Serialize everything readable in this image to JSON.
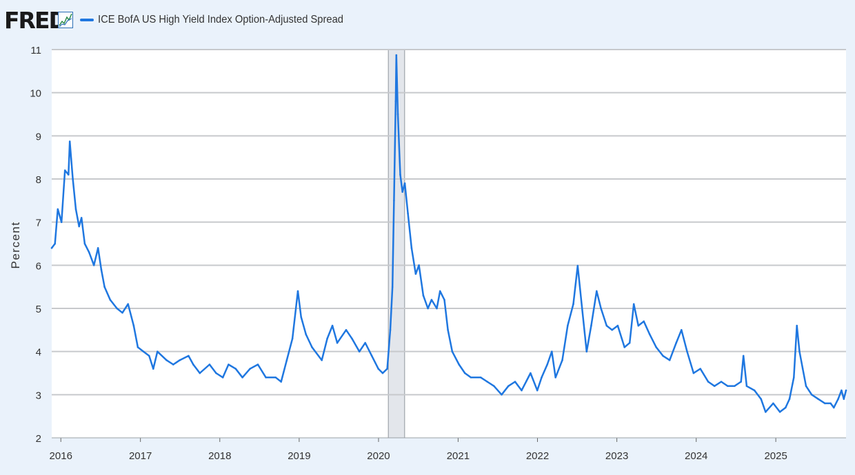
{
  "header": {
    "logo_text": "FRED",
    "logo_icon": "line-chart-icon"
  },
  "chart_data": {
    "type": "line",
    "ylabel": "Percent",
    "ylim": [
      2,
      11
    ],
    "y_ticks": [
      2,
      3,
      4,
      5,
      6,
      7,
      8,
      9,
      10,
      11
    ],
    "x_range": [
      "2015-11-20",
      "2025-11-20"
    ],
    "x_ticks": [
      "2016",
      "2017",
      "2018",
      "2019",
      "2020",
      "2021",
      "2022",
      "2023",
      "2024",
      "2025"
    ],
    "grid": true,
    "legend": "top-left",
    "recessions": [
      {
        "start": "2020-02-15",
        "end": "2020-04-30"
      }
    ],
    "series": [
      {
        "name": "ICE BofA US High Yield Index Option-Adjusted Spread",
        "color": "#1f77e0",
        "points": [
          [
            "2015-11-20",
            6.4
          ],
          [
            "2015-12-05",
            6.5
          ],
          [
            "2015-12-18",
            7.3
          ],
          [
            "2016-01-04",
            7.0
          ],
          [
            "2016-01-20",
            8.2
          ],
          [
            "2016-02-05",
            8.1
          ],
          [
            "2016-02-11",
            8.87
          ],
          [
            "2016-02-25",
            8.0
          ],
          [
            "2016-03-10",
            7.3
          ],
          [
            "2016-03-25",
            6.9
          ],
          [
            "2016-04-05",
            7.1
          ],
          [
            "2016-04-20",
            6.5
          ],
          [
            "2016-05-10",
            6.3
          ],
          [
            "2016-06-01",
            6.0
          ],
          [
            "2016-06-20",
            6.4
          ],
          [
            "2016-07-05",
            5.9
          ],
          [
            "2016-07-20",
            5.5
          ],
          [
            "2016-08-15",
            5.2
          ],
          [
            "2016-09-15",
            5.0
          ],
          [
            "2016-10-10",
            4.9
          ],
          [
            "2016-11-05",
            5.1
          ],
          [
            "2016-12-01",
            4.6
          ],
          [
            "2016-12-20",
            4.1
          ],
          [
            "2017-01-15",
            4.0
          ],
          [
            "2017-02-10",
            3.9
          ],
          [
            "2017-03-01",
            3.6
          ],
          [
            "2017-03-20",
            4.0
          ],
          [
            "2017-05-01",
            3.8
          ],
          [
            "2017-06-01",
            3.7
          ],
          [
            "2017-07-01",
            3.8
          ],
          [
            "2017-08-10",
            3.9
          ],
          [
            "2017-09-01",
            3.7
          ],
          [
            "2017-10-01",
            3.5
          ],
          [
            "2017-11-15",
            3.7
          ],
          [
            "2017-12-15",
            3.5
          ],
          [
            "2018-01-15",
            3.4
          ],
          [
            "2018-02-10",
            3.7
          ],
          [
            "2018-03-15",
            3.6
          ],
          [
            "2018-04-15",
            3.4
          ],
          [
            "2018-05-20",
            3.6
          ],
          [
            "2018-06-25",
            3.7
          ],
          [
            "2018-08-01",
            3.4
          ],
          [
            "2018-09-15",
            3.4
          ],
          [
            "2018-10-10",
            3.3
          ],
          [
            "2018-11-05",
            3.8
          ],
          [
            "2018-12-01",
            4.3
          ],
          [
            "2018-12-26",
            5.4
          ],
          [
            "2019-01-10",
            4.8
          ],
          [
            "2019-02-01",
            4.4
          ],
          [
            "2019-03-01",
            4.1
          ],
          [
            "2019-04-15",
            3.8
          ],
          [
            "2019-05-10",
            4.3
          ],
          [
            "2019-06-03",
            4.6
          ],
          [
            "2019-06-25",
            4.2
          ],
          [
            "2019-08-05",
            4.5
          ],
          [
            "2019-09-01",
            4.3
          ],
          [
            "2019-10-05",
            4.0
          ],
          [
            "2019-11-01",
            4.2
          ],
          [
            "2019-12-01",
            3.9
          ],
          [
            "2019-12-31",
            3.6
          ],
          [
            "2020-01-20",
            3.5
          ],
          [
            "2020-02-10",
            3.6
          ],
          [
            "2020-02-24",
            4.5
          ],
          [
            "2020-03-05",
            5.5
          ],
          [
            "2020-03-12",
            7.5
          ],
          [
            "2020-03-20",
            9.8
          ],
          [
            "2020-03-23",
            10.87
          ],
          [
            "2020-03-30",
            9.5
          ],
          [
            "2020-04-10",
            8.1
          ],
          [
            "2020-04-20",
            7.7
          ],
          [
            "2020-05-01",
            7.9
          ],
          [
            "2020-05-15",
            7.2
          ],
          [
            "2020-06-01",
            6.4
          ],
          [
            "2020-06-20",
            5.8
          ],
          [
            "2020-07-05",
            6.0
          ],
          [
            "2020-07-25",
            5.3
          ],
          [
            "2020-08-15",
            5.0
          ],
          [
            "2020-09-01",
            5.2
          ],
          [
            "2020-09-25",
            5.0
          ],
          [
            "2020-10-10",
            5.4
          ],
          [
            "2020-10-30",
            5.2
          ],
          [
            "2020-11-15",
            4.5
          ],
          [
            "2020-12-05",
            4.0
          ],
          [
            "2021-01-05",
            3.7
          ],
          [
            "2021-02-01",
            3.5
          ],
          [
            "2021-03-01",
            3.4
          ],
          [
            "2021-04-15",
            3.4
          ],
          [
            "2021-05-15",
            3.3
          ],
          [
            "2021-06-15",
            3.2
          ],
          [
            "2021-07-20",
            3.0
          ],
          [
            "2021-08-20",
            3.2
          ],
          [
            "2021-09-20",
            3.3
          ],
          [
            "2021-10-20",
            3.1
          ],
          [
            "2021-11-30",
            3.5
          ],
          [
            "2021-12-31",
            3.1
          ],
          [
            "2022-01-20",
            3.4
          ],
          [
            "2022-02-15",
            3.7
          ],
          [
            "2022-03-08",
            4.0
          ],
          [
            "2022-03-25",
            3.4
          ],
          [
            "2022-04-25",
            3.8
          ],
          [
            "2022-05-20",
            4.6
          ],
          [
            "2022-06-15",
            5.1
          ],
          [
            "2022-07-05",
            5.99
          ],
          [
            "2022-07-25",
            5.0
          ],
          [
            "2022-08-15",
            4.0
          ],
          [
            "2022-09-05",
            4.6
          ],
          [
            "2022-09-30",
            5.4
          ],
          [
            "2022-10-20",
            5.0
          ],
          [
            "2022-11-15",
            4.6
          ],
          [
            "2022-12-10",
            4.5
          ],
          [
            "2023-01-05",
            4.6
          ],
          [
            "2023-02-05",
            4.1
          ],
          [
            "2023-03-01",
            4.2
          ],
          [
            "2023-03-20",
            5.1
          ],
          [
            "2023-04-10",
            4.6
          ],
          [
            "2023-05-05",
            4.7
          ],
          [
            "2023-06-01",
            4.4
          ],
          [
            "2023-07-01",
            4.1
          ],
          [
            "2023-08-01",
            3.9
          ],
          [
            "2023-09-01",
            3.8
          ],
          [
            "2023-10-01",
            4.2
          ],
          [
            "2023-10-25",
            4.5
          ],
          [
            "2023-11-20",
            4.0
          ],
          [
            "2023-12-20",
            3.5
          ],
          [
            "2024-01-20",
            3.6
          ],
          [
            "2024-02-25",
            3.3
          ],
          [
            "2024-03-25",
            3.2
          ],
          [
            "2024-04-25",
            3.3
          ],
          [
            "2024-05-25",
            3.2
          ],
          [
            "2024-06-25",
            3.2
          ],
          [
            "2024-07-25",
            3.3
          ],
          [
            "2024-08-05",
            3.9
          ],
          [
            "2024-08-20",
            3.2
          ],
          [
            "2024-09-25",
            3.1
          ],
          [
            "2024-10-25",
            2.9
          ],
          [
            "2024-11-15",
            2.6
          ],
          [
            "2024-12-20",
            2.8
          ],
          [
            "2025-01-20",
            2.6
          ],
          [
            "2025-02-15",
            2.7
          ],
          [
            "2025-03-05",
            2.9
          ],
          [
            "2025-03-25",
            3.4
          ],
          [
            "2025-04-08",
            4.6
          ],
          [
            "2025-04-20",
            4.0
          ],
          [
            "2025-05-05",
            3.6
          ],
          [
            "2025-05-20",
            3.2
          ],
          [
            "2025-06-15",
            3.0
          ],
          [
            "2025-07-15",
            2.9
          ],
          [
            "2025-08-15",
            2.8
          ],
          [
            "2025-09-10",
            2.8
          ],
          [
            "2025-09-25",
            2.7
          ],
          [
            "2025-10-15",
            2.9
          ],
          [
            "2025-10-30",
            3.1
          ],
          [
            "2025-11-10",
            2.9
          ],
          [
            "2025-11-20",
            3.1
          ]
        ]
      }
    ]
  }
}
